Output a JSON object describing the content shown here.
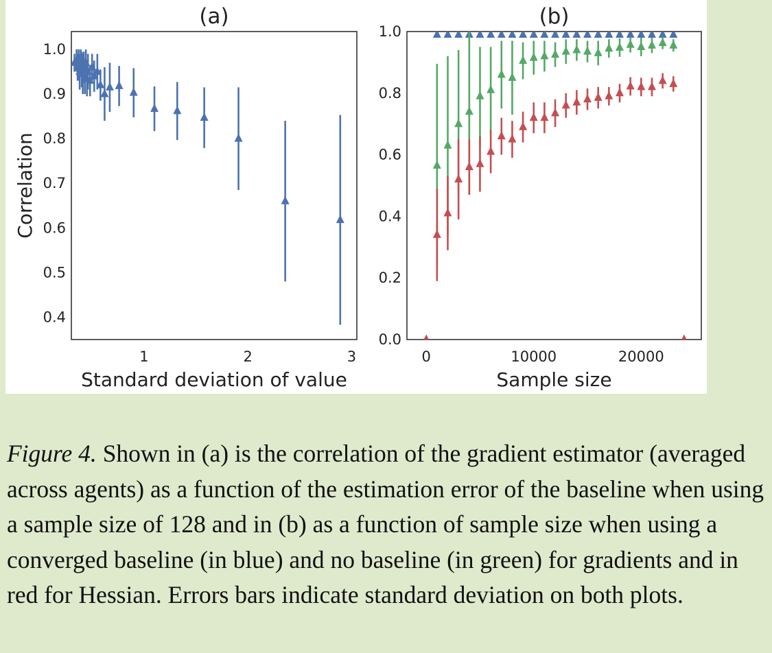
{
  "chart_data": [
    {
      "type": "errorbar",
      "title": "(a)",
      "xlabel": "Standard deviation of value",
      "ylabel": "Correlation",
      "xlim": [
        0.3,
        3.05
      ],
      "ylim": [
        0.35,
        1.04
      ],
      "xticks": [
        1,
        2,
        3
      ],
      "xtick_labels": [
        "1",
        "2",
        "3"
      ],
      "yticks": [
        0.4,
        0.5,
        0.6,
        0.7,
        0.8,
        0.9,
        1.0
      ],
      "ytick_labels": [
        "0.4",
        "0.5",
        "0.6",
        "0.7",
        "0.8",
        "0.9",
        "1.0"
      ],
      "marker": "triangle",
      "series": [
        {
          "color": "#4c72b0",
          "points": [
            {
              "x": 0.33,
              "y": 0.97,
              "err": 0.02
            },
            {
              "x": 0.35,
              "y": 0.975,
              "err": 0.025
            },
            {
              "x": 0.36,
              "y": 0.96,
              "err": 0.03
            },
            {
              "x": 0.37,
              "y": 0.965,
              "err": 0.035
            },
            {
              "x": 0.38,
              "y": 0.95,
              "err": 0.04
            },
            {
              "x": 0.39,
              "y": 0.975,
              "err": 0.025
            },
            {
              "x": 0.4,
              "y": 0.955,
              "err": 0.04
            },
            {
              "x": 0.41,
              "y": 0.945,
              "err": 0.045
            },
            {
              "x": 0.42,
              "y": 0.96,
              "err": 0.035
            },
            {
              "x": 0.43,
              "y": 0.94,
              "err": 0.04
            },
            {
              "x": 0.44,
              "y": 0.97,
              "err": 0.03
            },
            {
              "x": 0.45,
              "y": 0.935,
              "err": 0.04
            },
            {
              "x": 0.46,
              "y": 0.95,
              "err": 0.04
            },
            {
              "x": 0.48,
              "y": 0.93,
              "err": 0.035
            },
            {
              "x": 0.5,
              "y": 0.96,
              "err": 0.03
            },
            {
              "x": 0.52,
              "y": 0.94,
              "err": 0.035
            },
            {
              "x": 0.55,
              "y": 0.95,
              "err": 0.04
            },
            {
              "x": 0.58,
              "y": 0.92,
              "err": 0.035
            },
            {
              "x": 0.62,
              "y": 0.9,
              "err": 0.06
            },
            {
              "x": 0.67,
              "y": 0.915,
              "err": 0.055
            },
            {
              "x": 0.76,
              "y": 0.918,
              "err": 0.045
            },
            {
              "x": 0.9,
              "y": 0.903,
              "err": 0.055
            },
            {
              "x": 1.1,
              "y": 0.867,
              "err": 0.05
            },
            {
              "x": 1.32,
              "y": 0.862,
              "err": 0.065
            },
            {
              "x": 1.58,
              "y": 0.847,
              "err": 0.068
            },
            {
              "x": 1.91,
              "y": 0.8,
              "err": 0.115
            },
            {
              "x": 2.36,
              "y": 0.66,
              "err": 0.18
            },
            {
              "x": 2.89,
              "y": 0.618,
              "err": 0.235
            }
          ]
        }
      ]
    },
    {
      "type": "errorbar",
      "title": "(b)",
      "xlabel": "Sample size",
      "ylabel": "",
      "xlim": [
        -1800,
        25600
      ],
      "ylim": [
        0.0,
        1.0
      ],
      "xticks": [
        0,
        10000,
        20000
      ],
      "xtick_labels": [
        "0",
        "10000",
        "20000"
      ],
      "yticks": [
        0.0,
        0.2,
        0.4,
        0.6,
        0.8,
        1.0
      ],
      "ytick_labels": [
        "0.0",
        "0.2",
        "0.4",
        "0.6",
        "0.8",
        "1.0"
      ],
      "marker": "triangle",
      "series": [
        {
          "color": "#4c72b0",
          "points": [
            {
              "x": 1000,
              "y": 0.99,
              "err": 0
            },
            {
              "x": 2000,
              "y": 0.99,
              "err": 0
            },
            {
              "x": 3000,
              "y": 0.99,
              "err": 0
            },
            {
              "x": 4000,
              "y": 0.99,
              "err": 0
            },
            {
              "x": 5000,
              "y": 0.99,
              "err": 0
            },
            {
              "x": 6000,
              "y": 0.99,
              "err": 0
            },
            {
              "x": 7000,
              "y": 0.99,
              "err": 0
            },
            {
              "x": 8000,
              "y": 0.99,
              "err": 0
            },
            {
              "x": 9000,
              "y": 0.99,
              "err": 0
            },
            {
              "x": 10000,
              "y": 0.99,
              "err": 0
            },
            {
              "x": 11000,
              "y": 0.99,
              "err": 0
            },
            {
              "x": 12000,
              "y": 0.99,
              "err": 0
            },
            {
              "x": 13000,
              "y": 0.99,
              "err": 0
            },
            {
              "x": 14000,
              "y": 0.99,
              "err": 0
            },
            {
              "x": 15000,
              "y": 0.99,
              "err": 0
            },
            {
              "x": 16000,
              "y": 0.99,
              "err": 0
            },
            {
              "x": 17000,
              "y": 0.99,
              "err": 0
            },
            {
              "x": 18000,
              "y": 0.99,
              "err": 0
            },
            {
              "x": 19000,
              "y": 0.99,
              "err": 0
            },
            {
              "x": 20000,
              "y": 0.99,
              "err": 0
            },
            {
              "x": 21000,
              "y": 0.99,
              "err": 0
            },
            {
              "x": 22000,
              "y": 0.99,
              "err": 0
            },
            {
              "x": 23000,
              "y": 0.99,
              "err": 0
            }
          ]
        },
        {
          "color": "#55a868",
          "points": [
            {
              "x": 1000,
              "y": 0.565,
              "err": 0.33
            },
            {
              "x": 2000,
              "y": 0.63,
              "err": 0.29
            },
            {
              "x": 3000,
              "y": 0.7,
              "err": 0.24
            },
            {
              "x": 4000,
              "y": 0.74,
              "err": 0.27
            },
            {
              "x": 5000,
              "y": 0.79,
              "err": 0.16
            },
            {
              "x": 6000,
              "y": 0.81,
              "err": 0.14
            },
            {
              "x": 7000,
              "y": 0.86,
              "err": 0.11
            },
            {
              "x": 8000,
              "y": 0.85,
              "err": 0.12
            },
            {
              "x": 9000,
              "y": 0.905,
              "err": 0.06
            },
            {
              "x": 10000,
              "y": 0.915,
              "err": 0.055
            },
            {
              "x": 11000,
              "y": 0.92,
              "err": 0.05
            },
            {
              "x": 12000,
              "y": 0.925,
              "err": 0.04
            },
            {
              "x": 13000,
              "y": 0.935,
              "err": 0.04
            },
            {
              "x": 14000,
              "y": 0.94,
              "err": 0.035
            },
            {
              "x": 15000,
              "y": 0.935,
              "err": 0.035
            },
            {
              "x": 16000,
              "y": 0.93,
              "err": 0.04
            },
            {
              "x": 17000,
              "y": 0.945,
              "err": 0.03
            },
            {
              "x": 18000,
              "y": 0.948,
              "err": 0.03
            },
            {
              "x": 19000,
              "y": 0.957,
              "err": 0.025
            },
            {
              "x": 20000,
              "y": 0.95,
              "err": 0.03
            },
            {
              "x": 21000,
              "y": 0.955,
              "err": 0.025
            },
            {
              "x": 22000,
              "y": 0.963,
              "err": 0.02
            },
            {
              "x": 23000,
              "y": 0.955,
              "err": 0.02
            }
          ]
        },
        {
          "color": "#c44e52",
          "points": [
            {
              "x": 0,
              "y": 0.0,
              "err": 0
            },
            {
              "x": 1000,
              "y": 0.34,
              "err": 0.15
            },
            {
              "x": 2000,
              "y": 0.41,
              "err": 0.12
            },
            {
              "x": 3000,
              "y": 0.52,
              "err": 0.13
            },
            {
              "x": 4000,
              "y": 0.56,
              "err": 0.09
            },
            {
              "x": 5000,
              "y": 0.57,
              "err": 0.09
            },
            {
              "x": 6000,
              "y": 0.61,
              "err": 0.07
            },
            {
              "x": 7000,
              "y": 0.66,
              "err": 0.06
            },
            {
              "x": 8000,
              "y": 0.65,
              "err": 0.06
            },
            {
              "x": 9000,
              "y": 0.69,
              "err": 0.05
            },
            {
              "x": 10000,
              "y": 0.72,
              "err": 0.05
            },
            {
              "x": 11000,
              "y": 0.72,
              "err": 0.05
            },
            {
              "x": 12000,
              "y": 0.735,
              "err": 0.045
            },
            {
              "x": 13000,
              "y": 0.76,
              "err": 0.04
            },
            {
              "x": 14000,
              "y": 0.77,
              "err": 0.04
            },
            {
              "x": 15000,
              "y": 0.78,
              "err": 0.035
            },
            {
              "x": 16000,
              "y": 0.785,
              "err": 0.035
            },
            {
              "x": 17000,
              "y": 0.79,
              "err": 0.03
            },
            {
              "x": 18000,
              "y": 0.8,
              "err": 0.03
            },
            {
              "x": 19000,
              "y": 0.822,
              "err": 0.03
            },
            {
              "x": 20000,
              "y": 0.82,
              "err": 0.03
            },
            {
              "x": 21000,
              "y": 0.82,
              "err": 0.03
            },
            {
              "x": 22000,
              "y": 0.84,
              "err": 0.025
            },
            {
              "x": 23000,
              "y": 0.83,
              "err": 0.025
            },
            {
              "x": 24000,
              "y": 0.0,
              "err": 0
            }
          ]
        }
      ]
    }
  ],
  "caption": {
    "label": "Figure 4.",
    "text": " Shown in (a) is the correlation of the gradient estimator (averaged across agents) as a function of the estimation error of the baseline when using a sample size of 128 and in (b) as a function of sample size when using a converged baseline (in blue) and no baseline (in green) for gradients and in red for Hessian. Errors bars indicate standard deviation on both plots."
  }
}
